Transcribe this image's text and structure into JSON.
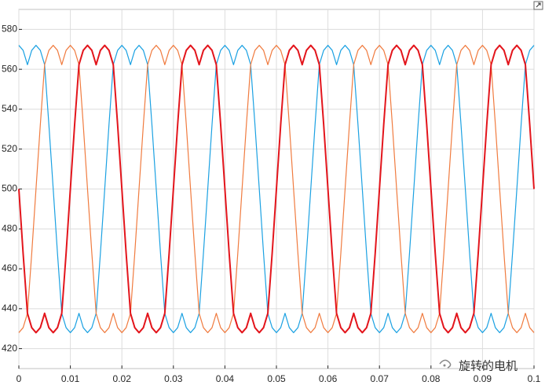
{
  "chart_data": {
    "type": "line",
    "x": [
      0,
      0.00083,
      0.00167,
      0.0025,
      0.00333,
      0.00417,
      0.005,
      0.00583,
      0.00667,
      0.0075,
      0.00833,
      0.00917,
      0.01,
      0.01083,
      0.01167,
      0.0125,
      0.01333,
      0.01417,
      0.015,
      0.01583,
      0.01667,
      0.0175,
      0.01833,
      0.01917,
      0.02,
      0.02083,
      0.02167,
      0.0225,
      0.02333,
      0.02417,
      0.025,
      0.02583,
      0.02667,
      0.0275,
      0.02833,
      0.02917,
      0.03,
      0.03083,
      0.03167,
      0.0325,
      0.03333,
      0.03417,
      0.035,
      0.03583,
      0.03667,
      0.0375,
      0.03833,
      0.03917,
      0.04,
      0.04083,
      0.04167,
      0.0425,
      0.04333,
      0.04417,
      0.045,
      0.04583,
      0.04667,
      0.0475,
      0.04833,
      0.04917,
      0.05,
      0.05083,
      0.05167,
      0.0525,
      0.05333,
      0.05417,
      0.055,
      0.05583,
      0.05667,
      0.0575,
      0.05833,
      0.05917,
      0.06,
      0.06083,
      0.06167,
      0.0625,
      0.06333,
      0.06417,
      0.065,
      0.06583,
      0.06667,
      0.0675,
      0.06833,
      0.06917,
      0.07,
      0.07083,
      0.07167,
      0.0725,
      0.07333,
      0.07417,
      0.075,
      0.07583,
      0.07667,
      0.0775,
      0.07833,
      0.07917,
      0.08,
      0.08083,
      0.08167,
      0.0825,
      0.08333,
      0.08417,
      0.085,
      0.08583,
      0.08667,
      0.0875,
      0.08833,
      0.08917,
      0.09,
      0.09083,
      0.09167,
      0.0925,
      0.09333,
      0.09417,
      0.095,
      0.09583,
      0.09667,
      0.0975,
      0.09833,
      0.09917,
      0.1
    ],
    "series": [
      {
        "color": "#1ba1e2",
        "width": 1.2,
        "values": [
          572,
          569.5,
          562.3,
          569.5,
          572,
          569.5,
          562.3,
          532.3,
          500,
          467.7,
          437.7,
          430.5,
          428,
          430.5,
          437.7,
          430.5,
          428,
          430.5,
          437.7,
          467.7,
          500,
          532.3,
          562.3,
          569.5,
          572,
          569.5,
          562.3,
          569.5,
          572,
          569.5,
          562.3,
          532.3,
          500,
          467.7,
          437.7,
          430.5,
          428,
          430.5,
          437.7,
          430.5,
          428,
          430.5,
          437.7,
          467.7,
          500,
          532.3,
          562.3,
          569.5,
          572,
          569.5,
          562.3,
          569.5,
          572,
          569.5,
          562.3,
          532.3,
          500,
          467.7,
          437.7,
          430.5,
          428,
          430.5,
          437.7,
          430.5,
          428,
          430.5,
          437.7,
          467.7,
          500,
          532.3,
          562.3,
          569.5,
          572,
          569.5,
          562.3,
          569.5,
          572,
          569.5,
          562.3,
          532.3,
          500,
          467.7,
          437.7,
          430.5,
          428,
          430.5,
          437.7,
          430.5,
          428,
          430.5,
          437.7,
          467.7,
          500,
          532.3,
          562.3,
          569.5,
          572,
          569.5,
          562.3,
          569.5,
          572,
          569.5,
          562.3,
          532.3,
          500,
          467.7,
          437.7,
          430.5,
          428,
          430.5,
          437.7,
          430.5,
          428,
          430.5,
          437.7,
          467.7,
          500,
          532.3,
          562.3,
          569.5,
          572
        ]
      },
      {
        "color": "#f07b3f",
        "width": 1.2,
        "values": [
          428,
          430.5,
          437.7,
          467.7,
          500,
          532.3,
          562.3,
          569.5,
          572,
          569.5,
          562.3,
          569.5,
          572,
          569.5,
          562.3,
          532.3,
          500,
          467.7,
          437.7,
          430.5,
          428,
          430.5,
          437.7,
          430.5,
          428,
          430.5,
          437.7,
          467.7,
          500,
          532.3,
          562.3,
          569.5,
          572,
          569.5,
          562.3,
          569.5,
          572,
          569.5,
          562.3,
          532.3,
          500,
          467.7,
          437.7,
          430.5,
          428,
          430.5,
          437.7,
          430.5,
          428,
          430.5,
          437.7,
          467.7,
          500,
          532.3,
          562.3,
          569.5,
          572,
          569.5,
          562.3,
          569.5,
          572,
          569.5,
          562.3,
          532.3,
          500,
          467.7,
          437.7,
          430.5,
          428,
          430.5,
          437.7,
          430.5,
          428,
          430.5,
          437.7,
          467.7,
          500,
          532.3,
          562.3,
          569.5,
          572,
          569.5,
          562.3,
          569.5,
          572,
          569.5,
          562.3,
          532.3,
          500,
          467.7,
          437.7,
          430.5,
          428,
          430.5,
          437.7,
          430.5,
          428,
          430.5,
          437.7,
          467.7,
          500,
          532.3,
          562.3,
          569.5,
          572,
          569.5,
          562.3,
          569.5,
          572,
          569.5,
          562.3,
          532.3,
          500,
          467.7,
          437.7,
          430.5,
          428,
          430.5,
          437.7,
          430.5,
          428
        ]
      },
      {
        "color": "#e3151c",
        "width": 2,
        "values": [
          500,
          467.7,
          437.7,
          430.5,
          428,
          430.5,
          437.7,
          430.5,
          428,
          430.5,
          437.7,
          467.7,
          500,
          532.3,
          562.3,
          569.5,
          572,
          569.5,
          562.3,
          569.5,
          572,
          569.5,
          562.3,
          532.3,
          500,
          467.7,
          437.7,
          430.5,
          428,
          430.5,
          437.7,
          430.5,
          428,
          430.5,
          437.7,
          467.7,
          500,
          532.3,
          562.3,
          569.5,
          572,
          569.5,
          562.3,
          569.5,
          572,
          569.5,
          562.3,
          532.3,
          500,
          467.7,
          437.7,
          430.5,
          428,
          430.5,
          437.7,
          430.5,
          428,
          430.5,
          437.7,
          467.7,
          500,
          532.3,
          562.3,
          569.5,
          572,
          569.5,
          562.3,
          569.5,
          572,
          569.5,
          562.3,
          532.3,
          500,
          467.7,
          437.7,
          430.5,
          428,
          430.5,
          437.7,
          430.5,
          428,
          430.5,
          437.7,
          467.7,
          500,
          532.3,
          562.3,
          569.5,
          572,
          569.5,
          562.3,
          569.5,
          572,
          569.5,
          562.3,
          532.3,
          500,
          467.7,
          437.7,
          430.5,
          428,
          430.5,
          437.7,
          430.5,
          428,
          430.5,
          437.7,
          467.7,
          500,
          532.3,
          562.3,
          569.5,
          572,
          569.5,
          562.3,
          569.5,
          572,
          569.5,
          562.3,
          532.3,
          500
        ]
      }
    ],
    "xlim": [
      0,
      0.1
    ],
    "xticks": [
      0,
      0.01,
      0.02,
      0.03,
      0.04,
      0.05,
      0.06,
      0.07,
      0.08,
      0.09,
      0.1
    ],
    "ylim": [
      410,
      590
    ],
    "yticks": [
      420,
      440,
      460,
      480,
      500,
      520,
      540,
      560,
      580
    ],
    "grid": true,
    "watermark": "旋转的电机"
  }
}
